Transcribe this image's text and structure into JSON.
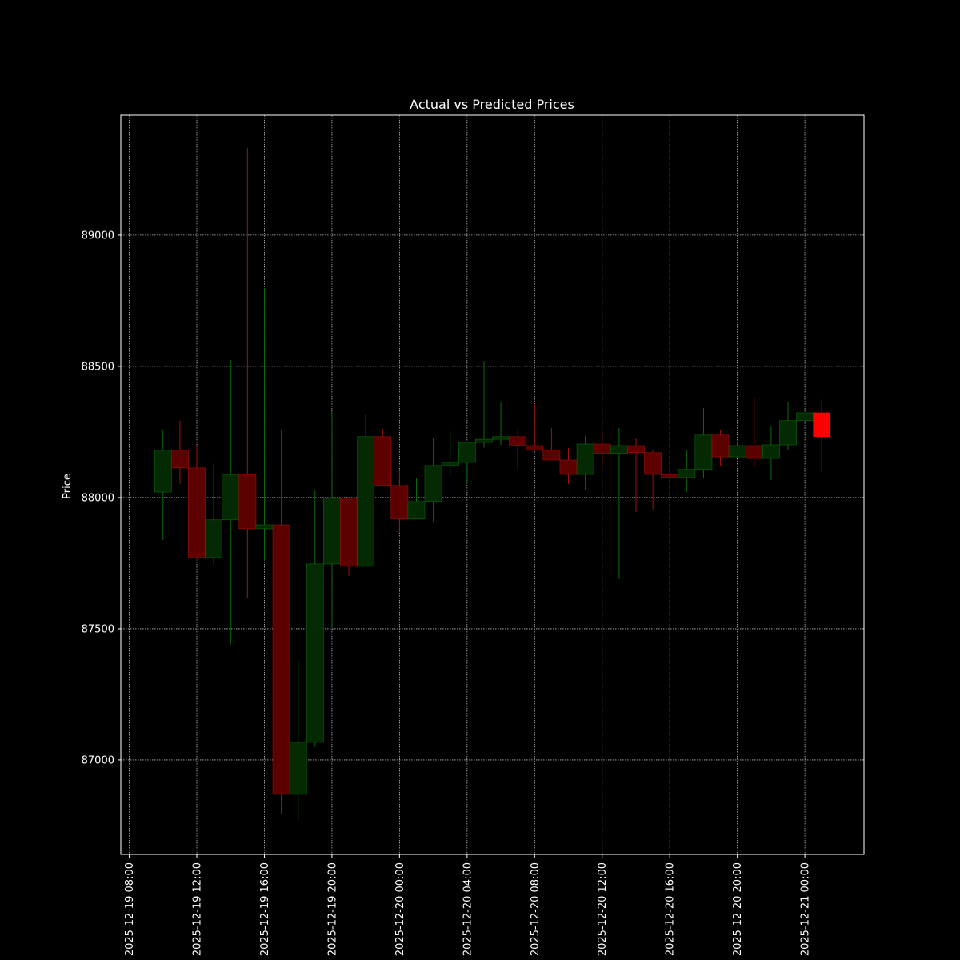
{
  "chart_data": {
    "type": "candlestick",
    "title": "Actual vs Predicted Prices",
    "ylabel": "Price",
    "grid": true,
    "ylim": [
      86640,
      89457
    ],
    "yticks": [
      87000,
      87500,
      88000,
      88500,
      89000
    ],
    "xlim": [
      "2025-12-19 07:30",
      "2025-12-21 03:30"
    ],
    "xticks": [
      "2025-12-19 08:00",
      "2025-12-19 12:00",
      "2025-12-19 16:00",
      "2025-12-19 20:00",
      "2025-12-20 00:00",
      "2025-12-20 04:00",
      "2025-12-20 08:00",
      "2025-12-20 12:00",
      "2025-12-20 16:00",
      "2025-12-20 20:00",
      "2025-12-21 00:00"
    ],
    "series": [
      {
        "up_color": "#0b6b0b",
        "down_color": "#a01010",
        "up_fill": "#032a03",
        "down_fill": "#5c0000",
        "x": [
          "2025-12-19 10:00",
          "2025-12-19 11:00",
          "2025-12-19 12:00",
          "2025-12-19 13:00",
          "2025-12-19 14:00",
          "2025-12-19 15:00",
          "2025-12-19 16:00",
          "2025-12-19 17:00",
          "2025-12-19 18:00",
          "2025-12-19 19:00",
          "2025-12-19 20:00",
          "2025-12-19 21:00",
          "2025-12-19 22:00",
          "2025-12-19 23:00",
          "2025-12-20 00:00",
          "2025-12-20 01:00",
          "2025-12-20 02:00",
          "2025-12-20 03:00",
          "2025-12-20 04:00",
          "2025-12-20 05:00",
          "2025-12-20 06:00",
          "2025-12-20 07:00",
          "2025-12-20 08:00",
          "2025-12-20 09:00",
          "2025-12-20 10:00",
          "2025-12-20 11:00",
          "2025-12-20 12:00",
          "2025-12-20 13:00",
          "2025-12-20 14:00",
          "2025-12-20 15:00",
          "2025-12-20 16:00",
          "2025-12-20 17:00",
          "2025-12-20 18:00",
          "2025-12-20 19:00",
          "2025-12-20 20:00",
          "2025-12-20 21:00",
          "2025-12-20 22:00",
          "2025-12-20 23:00",
          "2025-12-21 00:00"
        ],
        "open": [
          88021,
          88180,
          88113,
          87771,
          87915,
          88088,
          87881,
          87896,
          86869,
          87067,
          87747,
          87997,
          87738,
          88232,
          88046,
          87918,
          87985,
          88122,
          88134,
          88210,
          88222,
          88232,
          88198,
          88180,
          88143,
          88088,
          88204,
          88168,
          88198,
          88171,
          88088,
          88076,
          88107,
          88238,
          88155,
          88198,
          88149,
          88201,
          88293
        ],
        "high": [
          88260,
          88293,
          88200,
          88128,
          88524,
          89332,
          88799,
          88259,
          87381,
          88030,
          88326,
          88003,
          88320,
          88262,
          88104,
          88076,
          88226,
          88253,
          88210,
          88521,
          88363,
          88259,
          88357,
          88265,
          88189,
          88235,
          88259,
          88265,
          88226,
          88180,
          88088,
          88180,
          88341,
          88256,
          88210,
          88381,
          88274,
          88363,
          88323
        ],
        "low": [
          87838,
          88052,
          87762,
          87744,
          87439,
          87616,
          87762,
          86796,
          86768,
          87050,
          87503,
          87701,
          87738,
          88046,
          87866,
          87918,
          87909,
          88085,
          88052,
          88189,
          88201,
          88104,
          88180,
          88143,
          88052,
          88030,
          88119,
          87689,
          87945,
          87951,
          88067,
          88021,
          88076,
          88119,
          88150,
          88113,
          88067,
          88180,
          88293
        ],
        "close": [
          88180,
          88113,
          87771,
          87915,
          88088,
          87881,
          87896,
          86869,
          87067,
          87747,
          87997,
          87738,
          88232,
          88046,
          87918,
          87985,
          88122,
          88134,
          88210,
          88222,
          88232,
          88198,
          88180,
          88143,
          88088,
          88204,
          88168,
          88198,
          88171,
          88088,
          88076,
          88107,
          88238,
          88155,
          88198,
          88149,
          88201,
          88293,
          88323
        ]
      },
      {
        "color": "#ff0000",
        "x": [
          "2025-12-21 01:00"
        ],
        "open": [
          88323
        ],
        "high": [
          88372
        ],
        "low": [
          88098
        ],
        "close": [
          88232
        ]
      }
    ]
  }
}
